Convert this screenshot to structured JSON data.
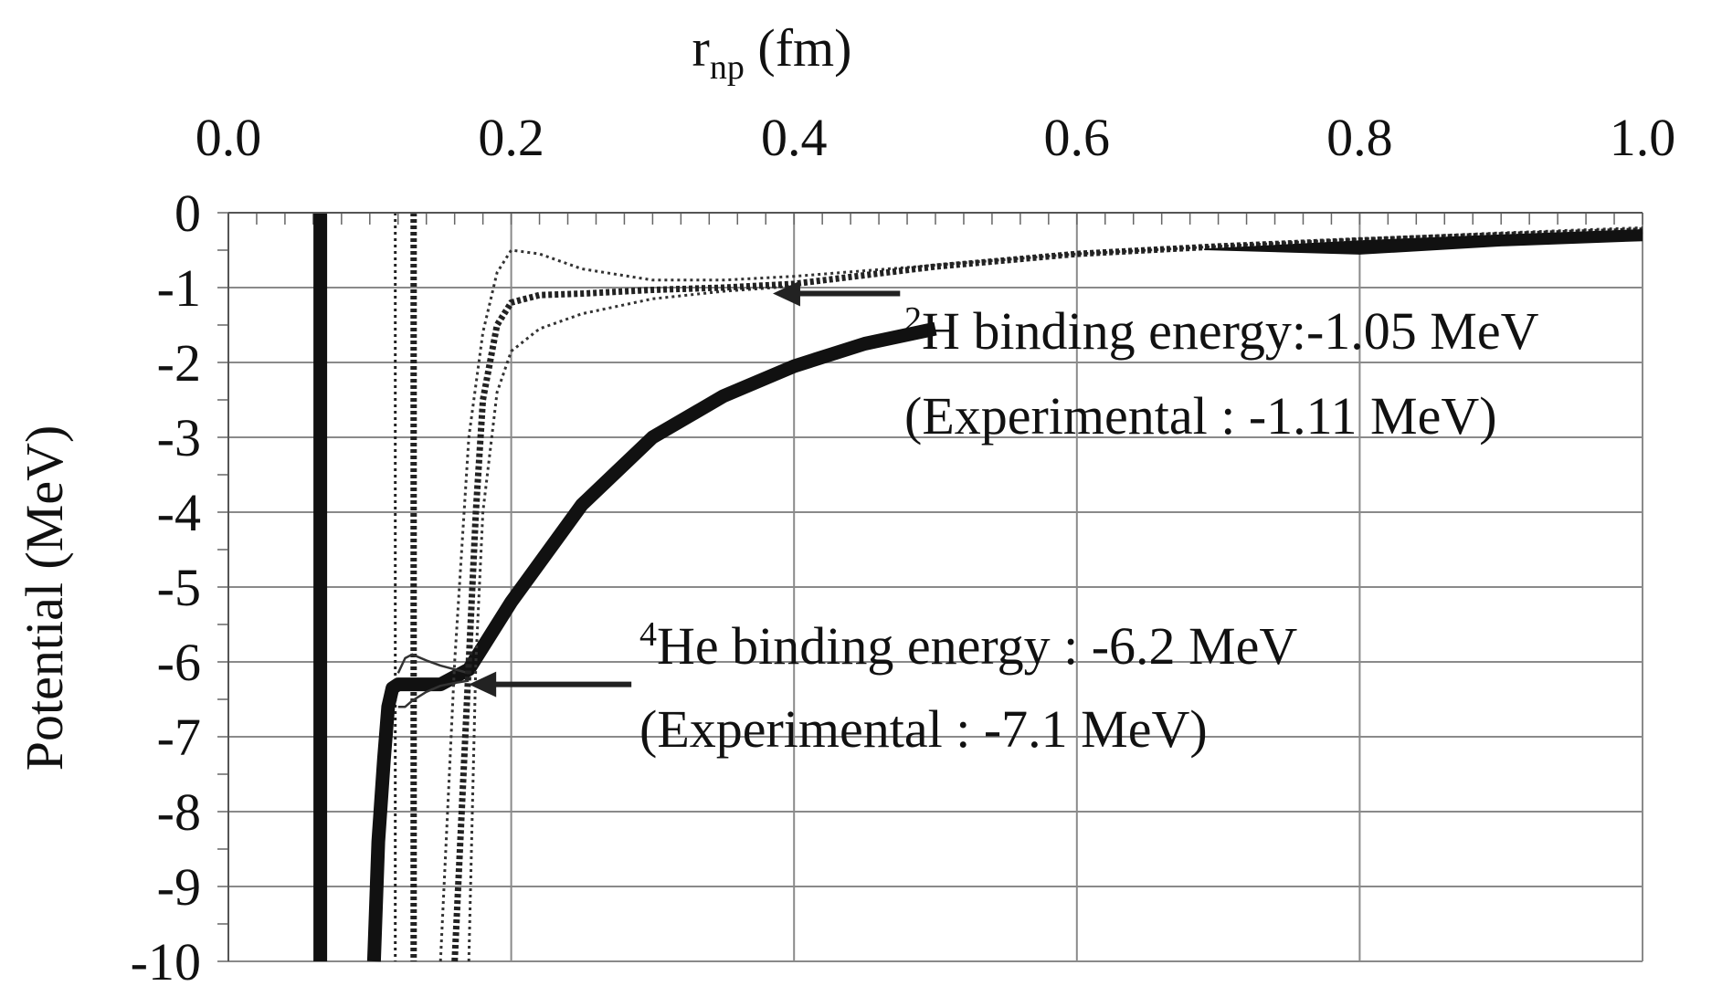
{
  "chart_data": {
    "type": "line",
    "xlabel_base": "r",
    "xlabel_sub": "np",
    "xlabel_unit": " (fm)",
    "ylabel": "Potential (MeV)",
    "xlim": [
      0.0,
      1.0
    ],
    "ylim": [
      -10,
      0
    ],
    "x_ticks": [
      "0.0",
      "0.2",
      "0.4",
      "0.6",
      "0.8",
      "1.0"
    ],
    "y_ticks": [
      "0",
      "-1",
      "-2",
      "-3",
      "-4",
      "-5",
      "-6",
      "-7",
      "-8",
      "-9",
      "-10"
    ],
    "grid": true,
    "x_axis_position": "top",
    "series": [
      {
        "style": "thick-solid",
        "color": "#111111",
        "x": [
          0.065,
          0.065
        ],
        "y": [
          0,
          -10
        ]
      },
      {
        "style": "dotted-thin",
        "color": "#222222",
        "x": [
          0.118,
          0.118
        ],
        "y": [
          0,
          -10
        ]
      },
      {
        "style": "dotted-bold",
        "color": "#222222",
        "x": [
          0.131,
          0.131
        ],
        "y": [
          0,
          -10
        ]
      },
      {
        "style": "thick-solid",
        "color": "#111111",
        "x": [
          0.103,
          0.106,
          0.11,
          0.113,
          0.116,
          0.12,
          0.13,
          0.15,
          0.17,
          0.2,
          0.25,
          0.3,
          0.35,
          0.4,
          0.45,
          0.5
        ],
        "y": [
          -10,
          -8.4,
          -7.3,
          -6.6,
          -6.35,
          -6.3,
          -6.3,
          -6.3,
          -6.1,
          -5.2,
          -3.9,
          -3.0,
          -2.45,
          -2.05,
          -1.75,
          -1.55
        ]
      },
      {
        "style": "thin-solid",
        "color": "#333333",
        "x": [
          0.12,
          0.125,
          0.13,
          0.14,
          0.15,
          0.16,
          0.17
        ],
        "y": [
          -6.15,
          -5.95,
          -5.9,
          -5.98,
          -6.05,
          -6.1,
          -6.15
        ]
      },
      {
        "style": "thin-solid",
        "color": "#333333",
        "x": [
          0.12,
          0.125,
          0.13,
          0.14,
          0.15,
          0.16,
          0.17
        ],
        "y": [
          -6.6,
          -6.6,
          -6.52,
          -6.4,
          -6.32,
          -6.28,
          -6.25
        ]
      },
      {
        "style": "dotted-thin",
        "color": "#333333",
        "x": [
          0.15,
          0.16,
          0.17,
          0.18,
          0.19,
          0.2,
          0.22,
          0.25,
          0.3,
          0.35,
          0.4,
          0.5,
          0.6,
          0.7,
          0.8,
          0.9,
          1.0
        ],
        "y": [
          -10,
          -6.0,
          -3.0,
          -1.6,
          -0.8,
          -0.5,
          -0.55,
          -0.75,
          -0.9,
          -0.9,
          -0.85,
          -0.7,
          -0.55,
          -0.45,
          -0.35,
          -0.27,
          -0.2
        ]
      },
      {
        "style": "dotted-thin",
        "color": "#333333",
        "x": [
          0.17,
          0.175,
          0.18,
          0.19,
          0.2,
          0.22,
          0.25,
          0.3,
          0.35,
          0.4
        ],
        "y": [
          -10,
          -6.0,
          -4.0,
          -2.4,
          -1.85,
          -1.55,
          -1.35,
          -1.15,
          -1.05,
          -0.98
        ]
      },
      {
        "style": "dotted-bold",
        "color": "#222222",
        "x": [
          0.16,
          0.165,
          0.17,
          0.175,
          0.18,
          0.19,
          0.2,
          0.22,
          0.25,
          0.3,
          0.35,
          0.4,
          0.5,
          0.6,
          0.7,
          0.8,
          0.9,
          1.0
        ],
        "y": [
          -10,
          -8.0,
          -6.0,
          -4.0,
          -2.5,
          -1.5,
          -1.2,
          -1.1,
          -1.08,
          -1.03,
          -1.0,
          -0.95,
          -0.72,
          -0.55,
          -0.45,
          -0.37,
          -0.3,
          -0.24
        ]
      },
      {
        "style": "band",
        "color": "#111111",
        "x": [
          0.69,
          0.8,
          0.9,
          1.0,
          1.0,
          0.9,
          0.8,
          0.69
        ],
        "y": [
          -0.48,
          -0.37,
          -0.29,
          -0.22,
          -0.38,
          -0.45,
          -0.56,
          -0.5
        ]
      }
    ],
    "annotations": [
      {
        "sup": "2",
        "text": "H binding energy:-1.05 MeV",
        "line2": "(Experimental : -1.11 MeV)",
        "arrow_from": [
          0.475,
          -1.08
        ],
        "arrow_to": [
          0.385,
          -1.08
        ]
      },
      {
        "sup": "4",
        "text": "He binding energy : -6.2 MeV",
        "line2": "(Experimental : -7.1 MeV)",
        "arrow_from": [
          0.285,
          -6.3
        ],
        "arrow_to": [
          0.17,
          -6.3
        ]
      }
    ]
  }
}
